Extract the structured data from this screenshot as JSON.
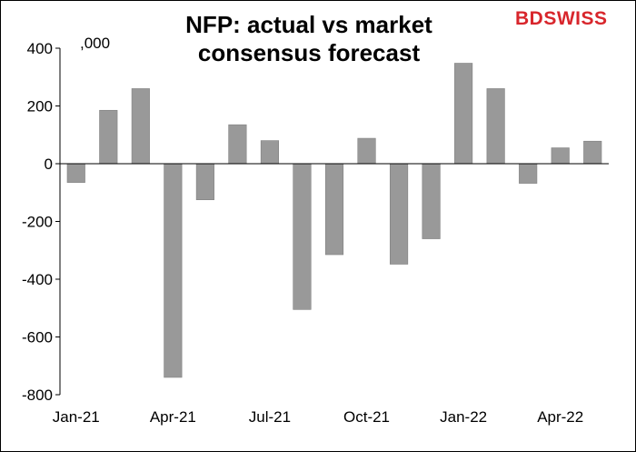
{
  "header": {
    "title_line1": "NFP: actual vs market",
    "title_line2": "consensus forecast",
    "logo_text_a": "BD",
    "logo_text_b": "SWISS",
    "units_label": ",000"
  },
  "chart_data": {
    "type": "bar",
    "title": "NFP: actual vs market consensus forecast",
    "ylabel": ",000",
    "xlabel": "",
    "ylim": [
      -800,
      400
    ],
    "yticks": [
      400,
      200,
      0,
      -200,
      -400,
      -600,
      -800
    ],
    "categories": [
      "Jan-21",
      "Feb-21",
      "Mar-21",
      "Apr-21",
      "May-21",
      "Jun-21",
      "Jul-21",
      "Aug-21",
      "Sep-21",
      "Oct-21",
      "Nov-21",
      "Dec-21",
      "Jan-22",
      "Feb-22",
      "Mar-22",
      "Apr-22",
      "May-22"
    ],
    "xtick_labels": [
      {
        "index": 0,
        "label": "Jan-21"
      },
      {
        "index": 3,
        "label": "Apr-21"
      },
      {
        "index": 6,
        "label": "Jul-21"
      },
      {
        "index": 9,
        "label": "Oct-21"
      },
      {
        "index": 12,
        "label": "Jan-22"
      },
      {
        "index": 15,
        "label": "Apr-22"
      }
    ],
    "values": [
      -65,
      185,
      260,
      -740,
      -125,
      135,
      80,
      -505,
      -315,
      88,
      -348,
      -260,
      348,
      260,
      -68,
      55,
      78
    ],
    "bar_color": "#999999",
    "grid": false
  }
}
